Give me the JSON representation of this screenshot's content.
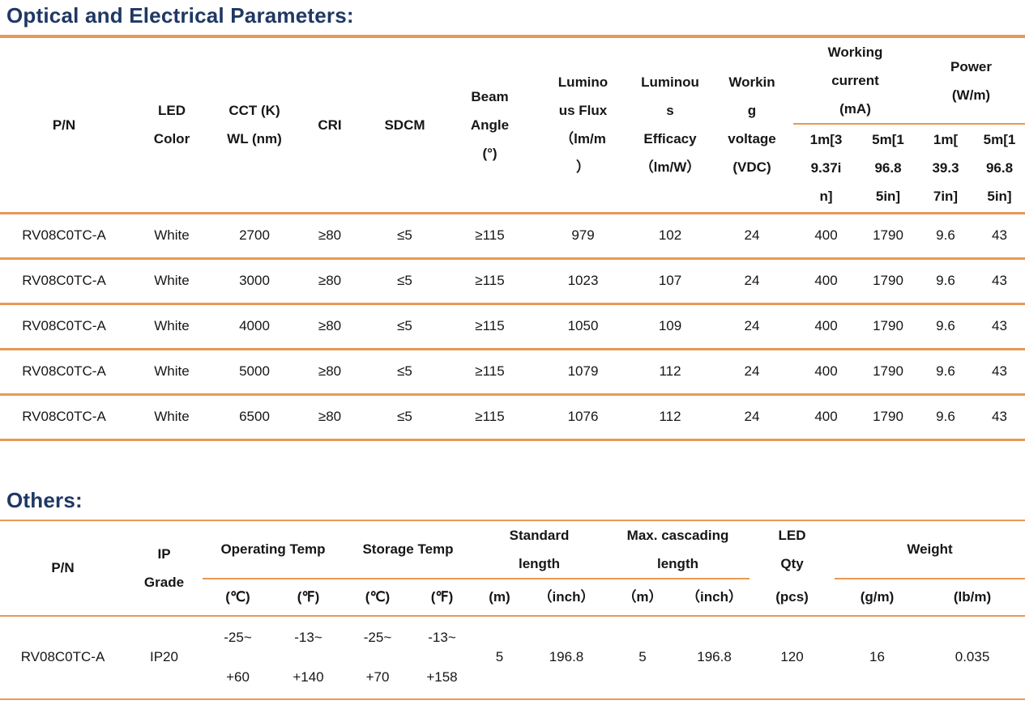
{
  "sections": {
    "optical": {
      "title": "Optical and Electrical Parameters:"
    },
    "others": {
      "title": "Others:"
    }
  },
  "colors": {
    "accent_orange": "#E69A55",
    "title_navy": "#1F3864",
    "text": "#161616"
  },
  "optical_table": {
    "header": {
      "pn": "P/N",
      "led_color": "LED\nColor",
      "cct_wl": "CCT (K)\nWL (nm)",
      "cri": "CRI",
      "sdcm": "SDCM",
      "beam_angle": "Beam\nAngle\n(°)",
      "luminous_flux": "Lumino\nus Flux\n（lm/m\n）",
      "luminous_efficacy": "Luminou\ns\nEfficacy\n（lm/W）",
      "working_voltage": "Workin\ng\nvoltage\n(VDC)",
      "working_current": "Working\ncurrent\n(mA)",
      "power": "Power\n(W/m)",
      "wc_1m": "1m[3\n9.37i\nn]",
      "wc_5m": "5m[1\n96.8\n5in]",
      "p_1m": "1m[\n39.3\n7in]",
      "p_5m": "5m[1\n96.8\n5in]"
    },
    "rows": [
      [
        "RV08C0TC-A",
        "White",
        "2700",
        "≥80",
        "≤5",
        "≥115",
        "979",
        "102",
        "24",
        "400",
        "1790",
        "9.6",
        "43"
      ],
      [
        "RV08C0TC-A",
        "White",
        "3000",
        "≥80",
        "≤5",
        "≥115",
        "1023",
        "107",
        "24",
        "400",
        "1790",
        "9.6",
        "43"
      ],
      [
        "RV08C0TC-A",
        "White",
        "4000",
        "≥80",
        "≤5",
        "≥115",
        "1050",
        "109",
        "24",
        "400",
        "1790",
        "9.6",
        "43"
      ],
      [
        "RV08C0TC-A",
        "White",
        "5000",
        "≥80",
        "≤5",
        "≥115",
        "1079",
        "112",
        "24",
        "400",
        "1790",
        "9.6",
        "43"
      ],
      [
        "RV08C0TC-A",
        "White",
        "6500",
        "≥80",
        "≤5",
        "≥115",
        "1076",
        "112",
        "24",
        "400",
        "1790",
        "9.6",
        "43"
      ]
    ]
  },
  "others_table": {
    "header": {
      "pn": "P/N",
      "ip_grade": "IP\nGrade",
      "operating_temp": "Operating Temp",
      "storage_temp": "Storage Temp",
      "standard_length": "Standard\nlength",
      "max_cascading_length": "Max. cascading\nlength",
      "led_qty": "LED\nQty",
      "weight": "Weight",
      "sub": {
        "op_c": "(℃)",
        "op_f": "(℉)",
        "st_c": "(℃)",
        "st_f": "(℉)",
        "std_m": "(m)",
        "std_inch": "（inch）",
        "max_m": "（m）",
        "max_inch": "（inch）",
        "pcs": "(pcs)",
        "g_m": "(g/m)",
        "lb_m": "(lb/m)"
      }
    },
    "rows": [
      [
        "RV08C0TC-A",
        "IP20",
        "-25~\n+60",
        "-13~\n+140",
        "-25~\n+70",
        "-13~\n+158",
        "5",
        "196.8",
        "5",
        "196.8",
        "120",
        "16",
        "0.035"
      ]
    ]
  }
}
